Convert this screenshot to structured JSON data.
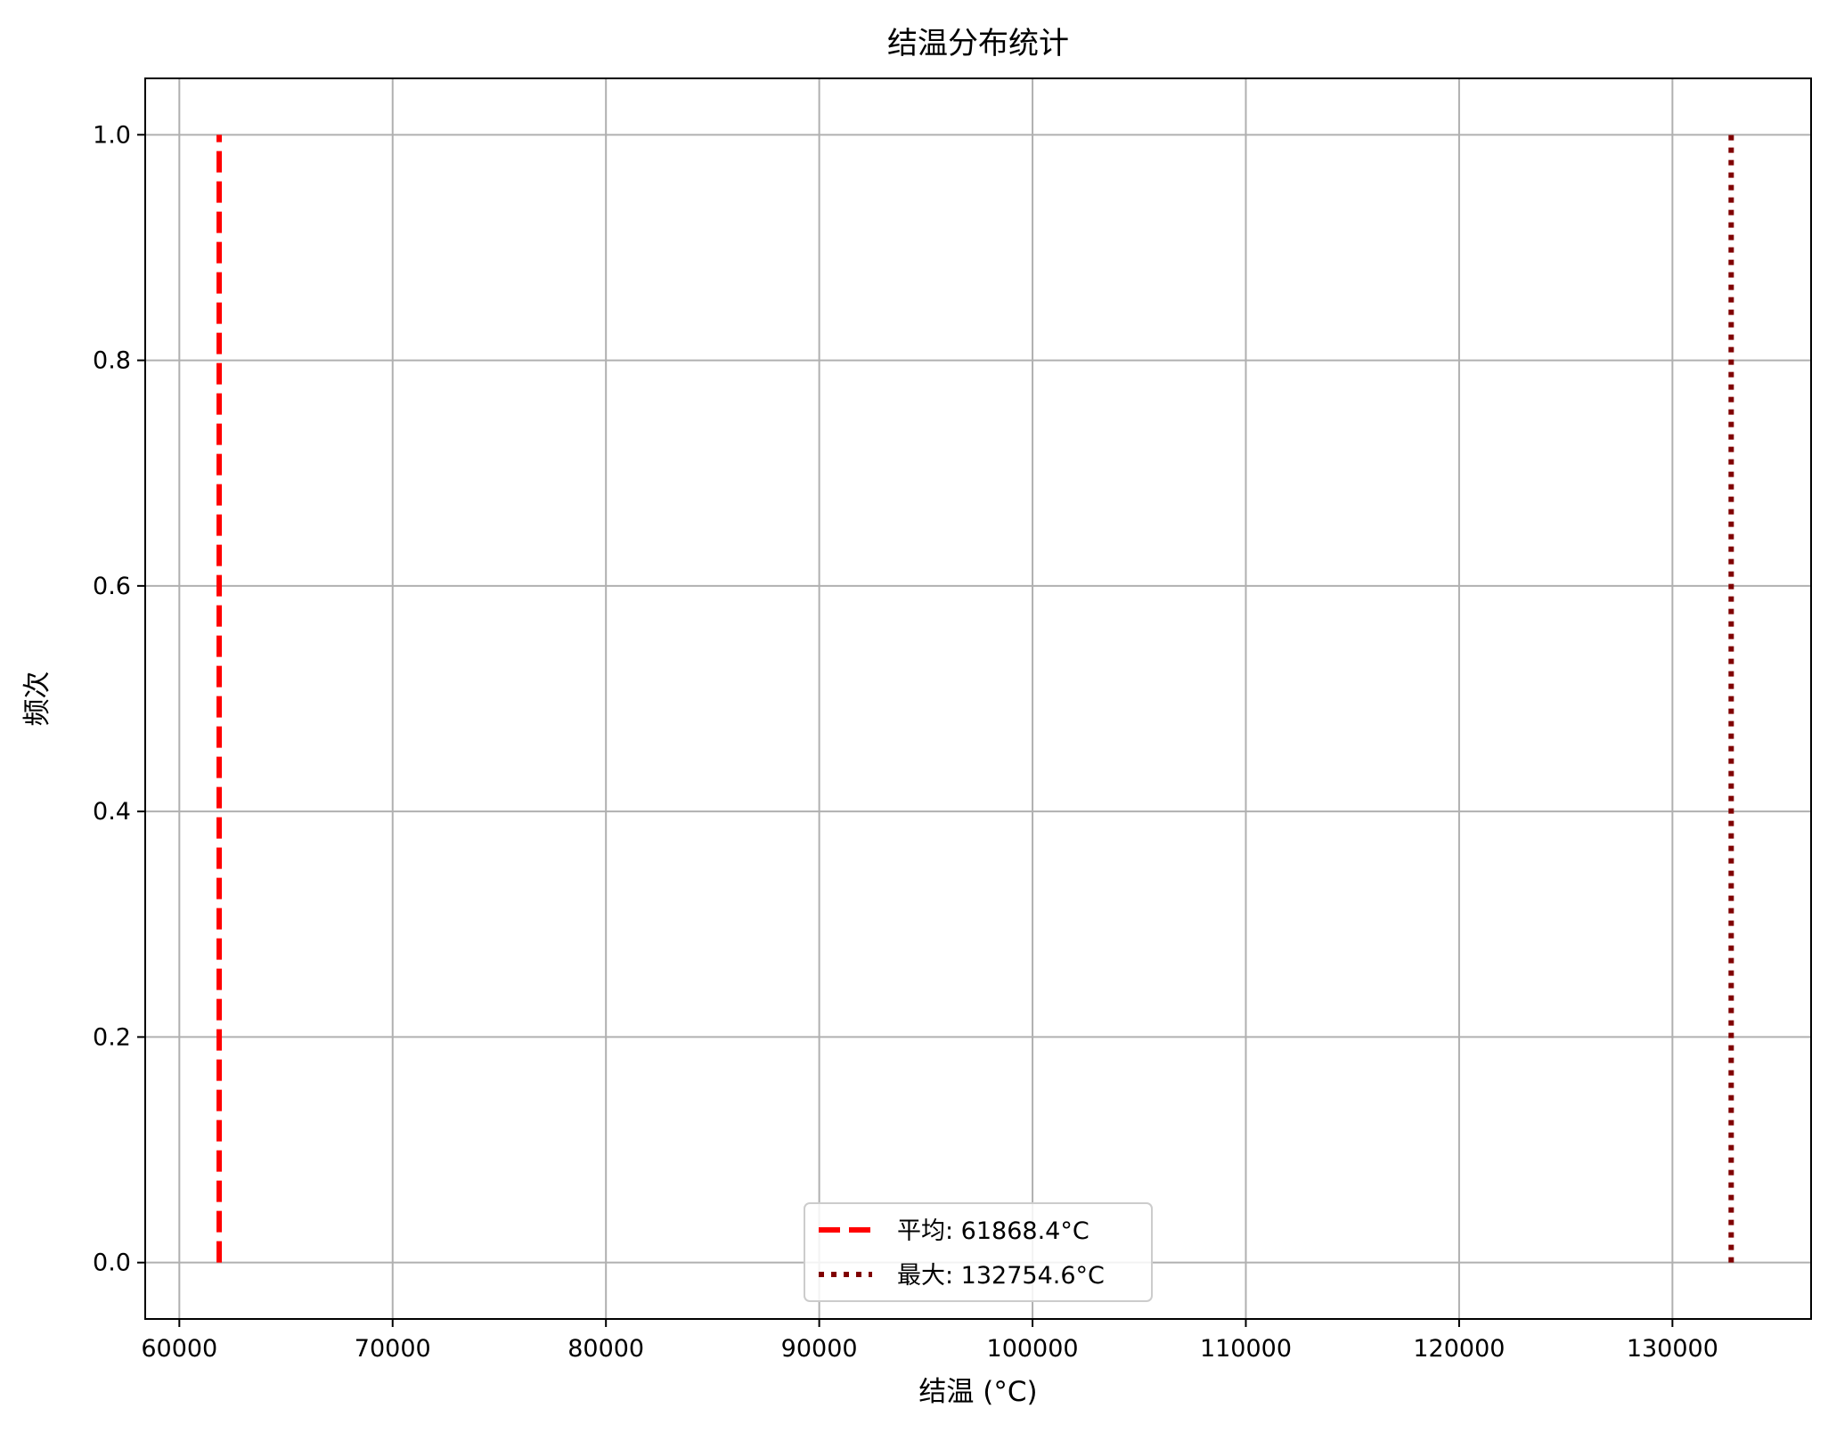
{
  "chart_data": {
    "type": "line",
    "title": "结温分布统计",
    "xlabel": "结温 (°C)",
    "ylabel": "频次",
    "xlim": [
      58400,
      136500
    ],
    "ylim": [
      -0.05,
      1.05
    ],
    "x_ticks": [
      60000,
      70000,
      80000,
      90000,
      100000,
      110000,
      120000,
      130000
    ],
    "y_ticks": [
      0.0,
      0.2,
      0.4,
      0.6,
      0.8,
      1.0
    ],
    "x_tick_labels": [
      "60000",
      "70000",
      "80000",
      "90000",
      "100000",
      "110000",
      "120000",
      "130000"
    ],
    "y_tick_labels": [
      "0.0",
      "0.2",
      "0.4",
      "0.6",
      "0.8",
      "1.0"
    ],
    "grid": true,
    "legend_position": "bottom-center",
    "series": [
      {
        "name": "平均: 61868.4°C",
        "x": [
          61868.4,
          61868.4
        ],
        "y": [
          0,
          1
        ],
        "color": "#ff0000",
        "style": "dashed"
      },
      {
        "name": "最大: 132754.6°C",
        "x": [
          132754.6,
          132754.6
        ],
        "y": [
          0,
          1
        ],
        "color": "#800000",
        "style": "dotted"
      }
    ]
  }
}
